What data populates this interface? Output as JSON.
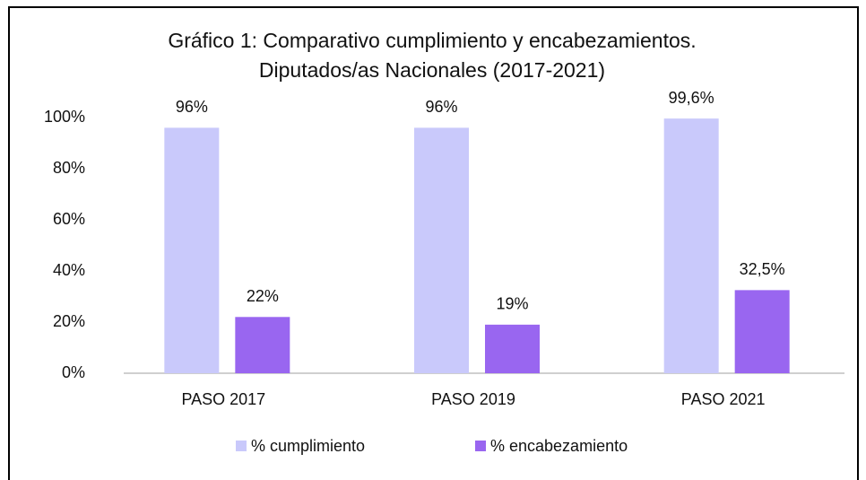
{
  "chart_data": {
    "type": "bar",
    "title": [
      "Gráfico 1:  Comparativo cumplimiento y encabezamientos.",
      "Diputados/as Nacionales (2017-2021)"
    ],
    "categories": [
      "PASO 2017",
      "PASO 2019",
      "PASO 2021"
    ],
    "series": [
      {
        "name": "% cumplimiento",
        "color": "#c9c9fb",
        "values": [
          96,
          96,
          99.6
        ],
        "value_labels": [
          "96%",
          "96%",
          "99,6%"
        ]
      },
      {
        "name": "% encabezamiento",
        "color": "#9966f0",
        "values": [
          22,
          19,
          32.5
        ],
        "value_labels": [
          "22%",
          "19%",
          "32,5%"
        ]
      }
    ],
    "ylim": [
      0,
      100
    ],
    "yticks": [
      {
        "value": 0,
        "label": "0%"
      },
      {
        "value": 20,
        "label": "20%"
      },
      {
        "value": 40,
        "label": "40%"
      },
      {
        "value": 60,
        "label": "60%"
      },
      {
        "value": 80,
        "label": "80%"
      },
      {
        "value": 100,
        "label": "100%"
      }
    ],
    "grid": false,
    "legend": "bottom"
  }
}
